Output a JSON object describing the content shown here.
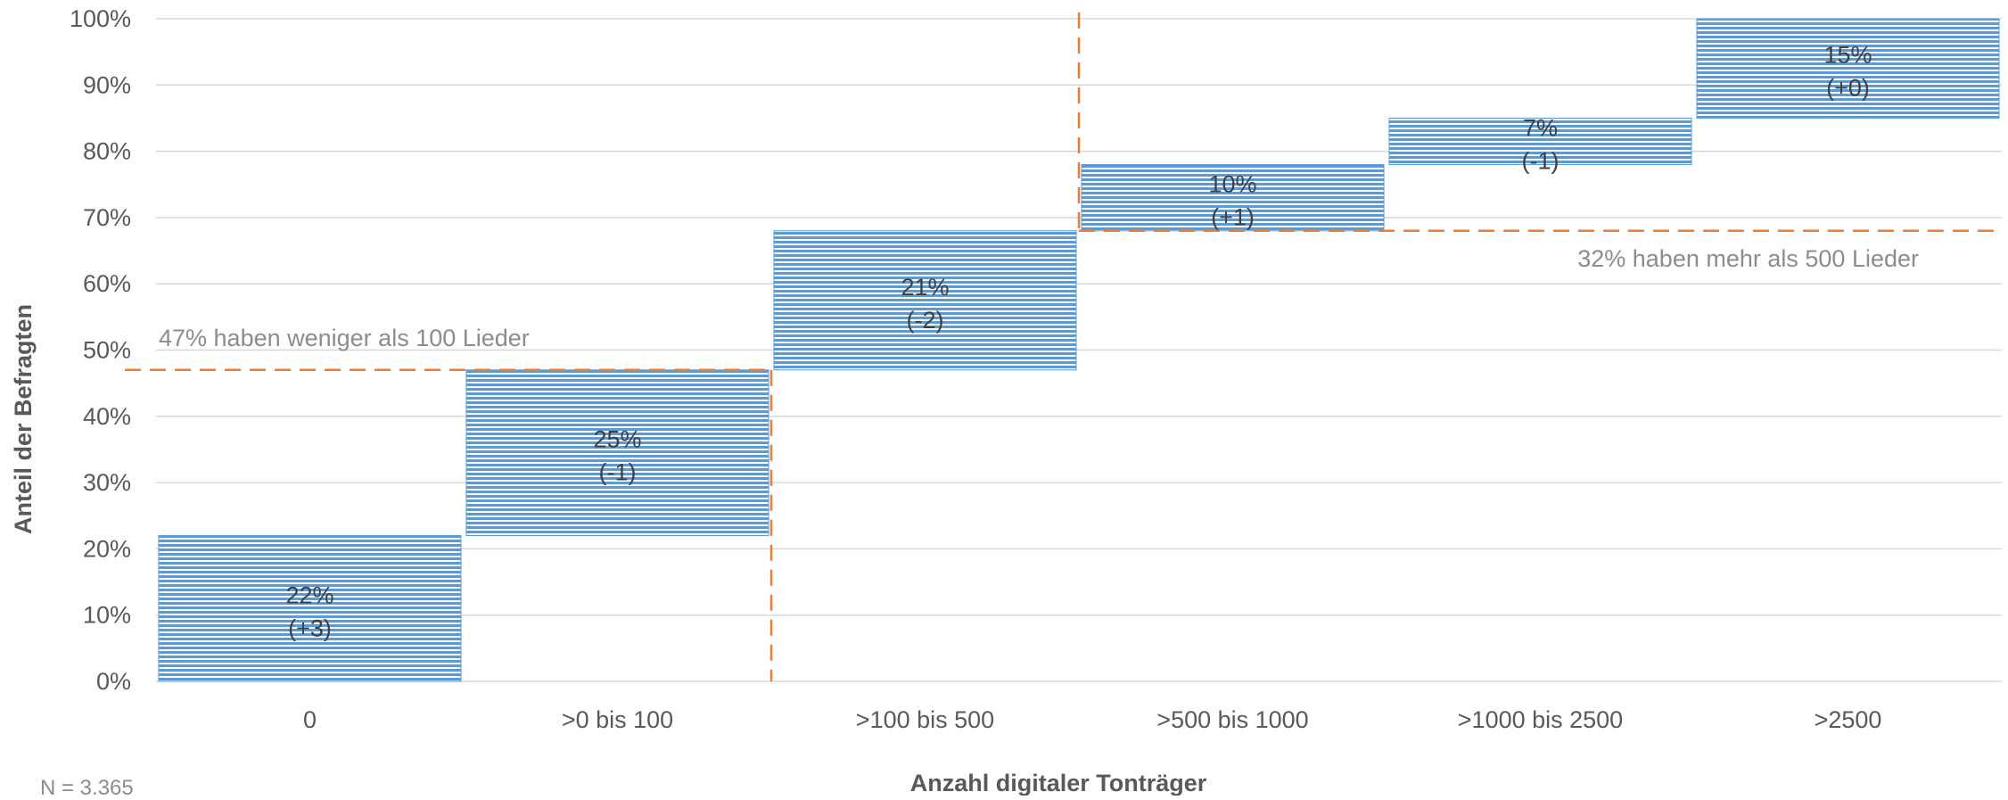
{
  "chart_data": {
    "type": "bar",
    "subtype": "stacked-waterfall",
    "categories": [
      "0",
      ">0 bis 100",
      ">100 bis 500",
      ">500 bis 1000",
      ">1000 bis 2500",
      ">2500"
    ],
    "values": [
      22,
      25,
      21,
      10,
      7,
      15
    ],
    "labels": [
      "22%",
      "25%",
      "21%",
      "10%",
      "7%",
      "15%"
    ],
    "changes": [
      "(+3)",
      "(-1)",
      "(-2)",
      "(+1)",
      "(-1)",
      "(+0)"
    ],
    "xlabel": "Anzahl digitaler Tonträger",
    "ylabel": "Anteil der Befragten",
    "ylim": [
      0,
      100
    ],
    "yticks": [
      0,
      10,
      20,
      30,
      40,
      50,
      60,
      70,
      80,
      90,
      100
    ],
    "grid": true,
    "bar_color": "#5b9bd5",
    "reference_color": "#ed7d31",
    "annotations": [
      {
        "text": "47% haben weniger als 100 Lieder",
        "y": 47
      },
      {
        "text": "32% haben mehr als 500 Lieder",
        "y": 68
      }
    ],
    "note": "N = 3.365"
  }
}
